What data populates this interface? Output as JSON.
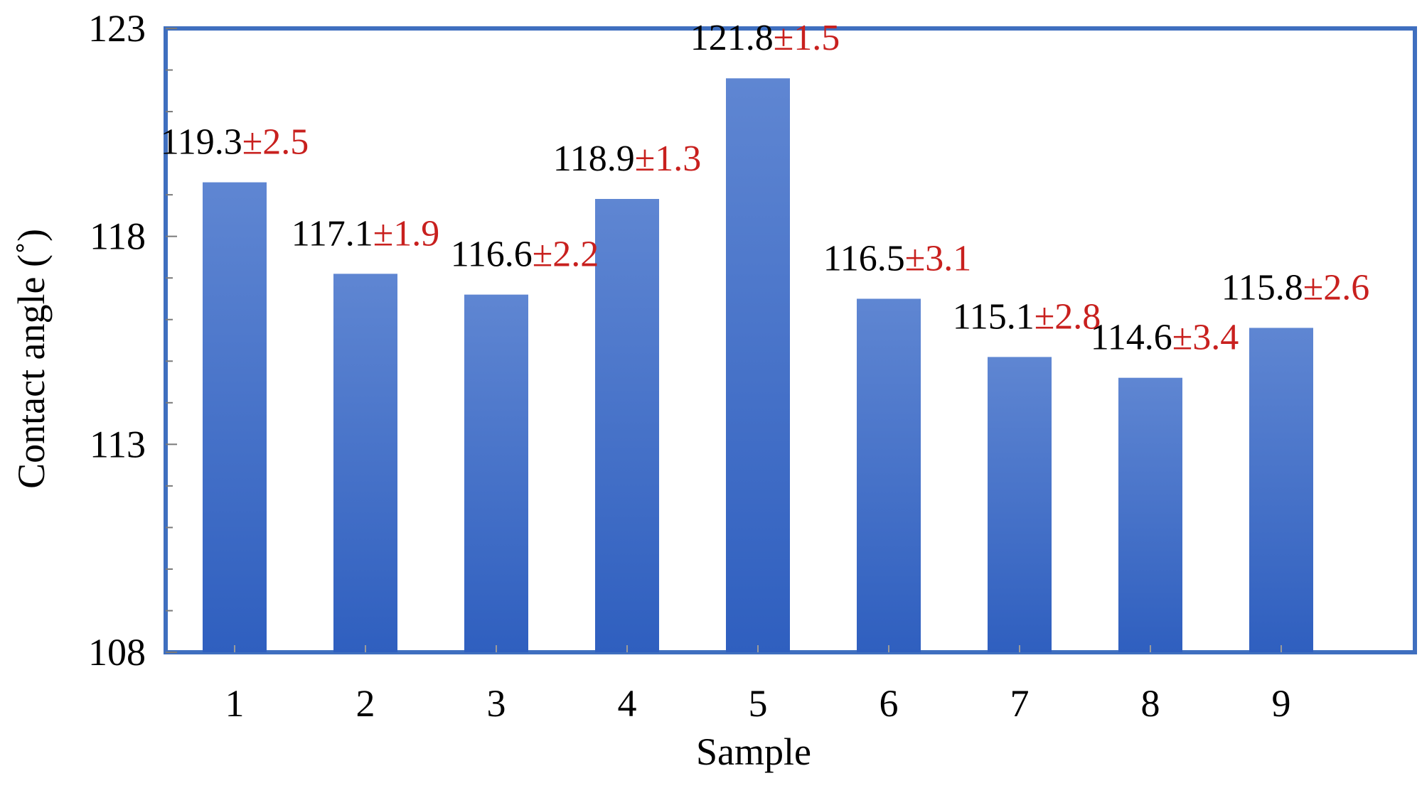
{
  "chart_data": {
    "type": "bar",
    "title": "",
    "xlabel": "Sample",
    "ylabel": "Contact angle (˚)",
    "categories": [
      "1",
      "2",
      "3",
      "4",
      "5",
      "6",
      "7",
      "8",
      "9"
    ],
    "values": [
      119.3,
      117.1,
      116.6,
      118.9,
      121.8,
      116.5,
      115.1,
      114.6,
      115.8
    ],
    "errors": [
      2.5,
      1.9,
      2.2,
      1.3,
      1.5,
      3.1,
      2.8,
      3.4,
      2.6
    ],
    "value_labels": [
      "119.3",
      "117.1",
      "116.6",
      "118.9",
      "121.8",
      "116.5",
      "115.1",
      "114.6",
      "115.8"
    ],
    "error_labels": [
      "±2.5",
      "±1.9",
      "±2.2",
      "±1.3",
      "±1.5",
      "±3.1",
      "±2.8",
      "±3.4",
      "±2.6"
    ],
    "ylim": [
      108,
      123
    ],
    "yticks": [
      "108",
      "113",
      "118",
      "123"
    ],
    "grid": false,
    "legend": "none",
    "colors": {
      "bar": "#3a6cc8",
      "bar_light": "#5f86d2",
      "bar_dark": "#2f5fbf",
      "frame": "#3f6fbf",
      "error_text": "#c8201e",
      "value_text": "#000000"
    }
  }
}
